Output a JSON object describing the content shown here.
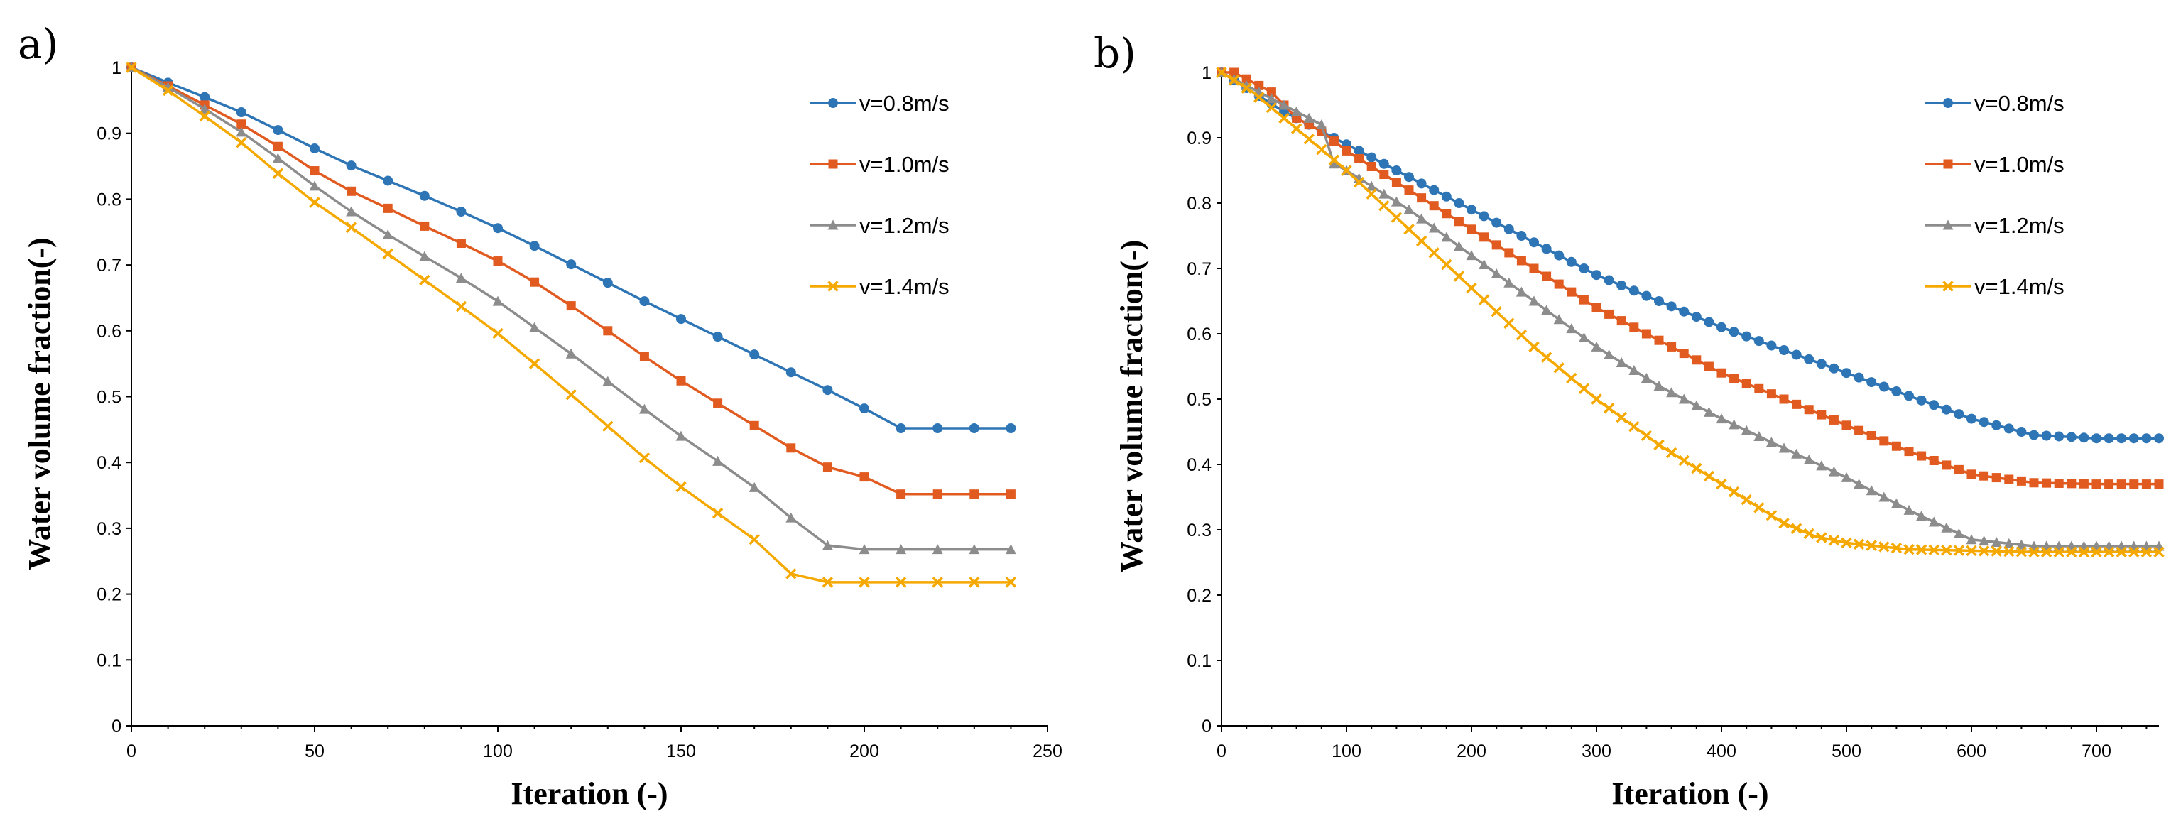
{
  "chart_data": [
    {
      "type": "line",
      "panel_label": "a)",
      "xlabel": "Iteration (-)",
      "ylabel": "Water volume fraction(-)",
      "xlim": [
        0,
        250
      ],
      "ylim": [
        0,
        1
      ],
      "xticks": [
        0,
        50,
        100,
        150,
        200,
        250
      ],
      "yticks": [
        0,
        0.1,
        0.2,
        0.3,
        0.4,
        0.5,
        0.6,
        0.7,
        0.8,
        0.9,
        1
      ],
      "legend_position": "top-right",
      "series": [
        {
          "name": "v=0.8m/s",
          "color": "#2E75B6",
          "marker": "circle",
          "x": [
            0,
            10,
            20,
            30,
            40,
            50,
            60,
            70,
            80,
            90,
            100,
            110,
            120,
            130,
            140,
            150,
            160,
            170,
            180,
            190,
            200,
            210,
            220,
            230,
            240
          ],
          "y": [
            1,
            0.977,
            0.955,
            0.932,
            0.905,
            0.877,
            0.851,
            0.828,
            0.805,
            0.781,
            0.756,
            0.729,
            0.701,
            0.673,
            0.645,
            0.618,
            0.591,
            0.564,
            0.537,
            0.51,
            0.482,
            0.452,
            0.452,
            0.452,
            0.452
          ]
        },
        {
          "name": "v=1.0m/s",
          "color": "#E15A1F",
          "marker": "square",
          "x": [
            0,
            10,
            20,
            30,
            40,
            50,
            60,
            70,
            80,
            90,
            100,
            110,
            120,
            130,
            140,
            150,
            160,
            170,
            180,
            190,
            200,
            210,
            220,
            230,
            240
          ],
          "y": [
            1,
            0.972,
            0.943,
            0.914,
            0.88,
            0.843,
            0.812,
            0.786,
            0.759,
            0.733,
            0.706,
            0.674,
            0.638,
            0.6,
            0.561,
            0.524,
            0.49,
            0.456,
            0.422,
            0.393,
            0.378,
            0.352,
            0.352,
            0.352,
            0.352
          ]
        },
        {
          "name": "v=1.2m/s",
          "color": "#8C8C8C",
          "marker": "triangle",
          "x": [
            0,
            10,
            20,
            30,
            40,
            50,
            60,
            70,
            80,
            90,
            100,
            110,
            120,
            130,
            140,
            150,
            160,
            170,
            180,
            190,
            200,
            210,
            220,
            230,
            240
          ],
          "y": [
            1,
            0.97,
            0.937,
            0.902,
            0.862,
            0.82,
            0.781,
            0.746,
            0.713,
            0.68,
            0.645,
            0.605,
            0.565,
            0.523,
            0.481,
            0.44,
            0.402,
            0.362,
            0.316,
            0.274,
            0.268,
            0.268,
            0.268,
            0.268,
            0.268
          ]
        },
        {
          "name": "v=1.4m/s",
          "color": "#F5A800",
          "marker": "x",
          "x": [
            0,
            10,
            20,
            30,
            40,
            50,
            60,
            70,
            80,
            90,
            100,
            110,
            120,
            130,
            140,
            150,
            160,
            170,
            180,
            190,
            200,
            210,
            220,
            230,
            240
          ],
          "y": [
            1,
            0.965,
            0.926,
            0.886,
            0.839,
            0.795,
            0.757,
            0.717,
            0.677,
            0.637,
            0.596,
            0.55,
            0.503,
            0.455,
            0.407,
            0.363,
            0.323,
            0.283,
            0.231,
            0.218,
            0.218,
            0.218,
            0.218,
            0.218,
            0.218
          ]
        }
      ]
    },
    {
      "type": "line",
      "panel_label": "b)",
      "xlabel": "Iteration (-)",
      "ylabel": "Water volume fraction(-)",
      "xlim": [
        0,
        750
      ],
      "ylim": [
        0,
        1
      ],
      "xticks": [
        0,
        100,
        200,
        300,
        400,
        500,
        600,
        700
      ],
      "yticks": [
        0,
        0.1,
        0.2,
        0.3,
        0.4,
        0.5,
        0.6,
        0.7,
        0.8,
        0.9,
        1
      ],
      "legend_position": "top-right",
      "series": [
        {
          "name": "v=0.8m/s",
          "color": "#2E75B6",
          "marker": "circle",
          "x": [
            0,
            50,
            100,
            150,
            200,
            250,
            300,
            350,
            400,
            450,
            500,
            550,
            600,
            650,
            700,
            750
          ],
          "y": [
            1,
            0.94,
            0.89,
            0.84,
            0.79,
            0.74,
            0.69,
            0.65,
            0.61,
            0.575,
            0.54,
            0.505,
            0.47,
            0.445,
            0.44,
            0.44
          ]
        },
        {
          "name": "v=1.0m/s",
          "color": "#E15A1F",
          "marker": "square",
          "x": [
            0,
            10,
            20,
            30,
            40,
            50,
            60,
            70,
            80,
            100,
            150,
            200,
            250,
            300,
            350,
            400,
            450,
            500,
            550,
            600,
            650,
            700,
            750
          ],
          "y": [
            1,
            1,
            0.99,
            0.98,
            0.97,
            0.95,
            0.93,
            0.92,
            0.91,
            0.88,
            0.82,
            0.76,
            0.7,
            0.64,
            0.59,
            0.54,
            0.5,
            0.46,
            0.42,
            0.385,
            0.372,
            0.37,
            0.37
          ]
        },
        {
          "name": "v=1.2m/s",
          "color": "#8C8C8C",
          "marker": "triangle",
          "x": [
            0,
            20,
            40,
            60,
            80,
            90,
            100,
            150,
            200,
            250,
            300,
            350,
            400,
            450,
            500,
            550,
            600,
            650,
            700,
            750
          ],
          "y": [
            1,
            0.98,
            0.96,
            0.94,
            0.92,
            0.86,
            0.85,
            0.79,
            0.72,
            0.65,
            0.58,
            0.52,
            0.47,
            0.425,
            0.38,
            0.33,
            0.285,
            0.275,
            0.275,
            0.275
          ]
        },
        {
          "name": "v=1.4m/s",
          "color": "#F5A800",
          "marker": "x",
          "x": [
            0,
            25,
            50,
            75,
            100,
            150,
            200,
            250,
            300,
            350,
            400,
            450,
            475,
            500,
            550,
            600,
            650,
            700,
            750
          ],
          "y": [
            1,
            0.97,
            0.93,
            0.89,
            0.85,
            0.76,
            0.67,
            0.58,
            0.5,
            0.43,
            0.37,
            0.31,
            0.29,
            0.28,
            0.27,
            0.268,
            0.266,
            0.266,
            0.266
          ]
        }
      ]
    }
  ]
}
